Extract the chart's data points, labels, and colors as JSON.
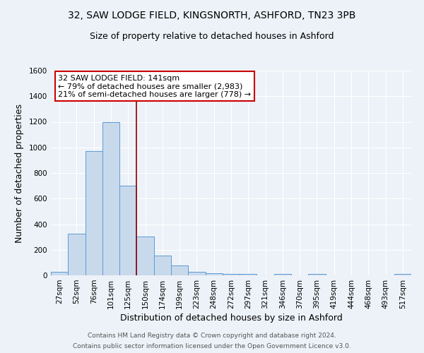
{
  "title": "32, SAW LODGE FIELD, KINGSNORTH, ASHFORD, TN23 3PB",
  "subtitle": "Size of property relative to detached houses in Ashford",
  "xlabel": "Distribution of detached houses by size in Ashford",
  "ylabel": "Number of detached properties",
  "footer1": "Contains HM Land Registry data © Crown copyright and database right 2024.",
  "footer2": "Contains public sector information licensed under the Open Government Licence v3.0.",
  "bar_labels": [
    "27sqm",
    "52sqm",
    "76sqm",
    "101sqm",
    "125sqm",
    "150sqm",
    "174sqm",
    "199sqm",
    "223sqm",
    "248sqm",
    "272sqm",
    "297sqm",
    "321sqm",
    "346sqm",
    "370sqm",
    "395sqm",
    "419sqm",
    "444sqm",
    "468sqm",
    "493sqm",
    "517sqm"
  ],
  "bar_values": [
    25,
    325,
    970,
    1200,
    700,
    305,
    155,
    75,
    30,
    18,
    10,
    10,
    0,
    10,
    0,
    13,
    0,
    0,
    0,
    0,
    13
  ],
  "bar_color": "#c9d9ec",
  "bar_edge_color": "#5b9bd5",
  "property_line_color": "#8b0000",
  "annotation_text": "32 SAW LODGE FIELD: 141sqm\n← 79% of detached houses are smaller (2,983)\n21% of semi-detached houses are larger (778) →",
  "annotation_box_color": "white",
  "annotation_box_edge_color": "#cc0000",
  "ylim": [
    0,
    1600
  ],
  "yticks": [
    0,
    200,
    400,
    600,
    800,
    1000,
    1200,
    1400,
    1600
  ],
  "bg_color": "#edf2f8",
  "plot_bg_color": "#edf2f8",
  "grid_color": "white",
  "title_fontsize": 10,
  "subtitle_fontsize": 9,
  "axis_label_fontsize": 9,
  "tick_fontsize": 7.5,
  "annotation_fontsize": 8,
  "footer_fontsize": 6.5
}
